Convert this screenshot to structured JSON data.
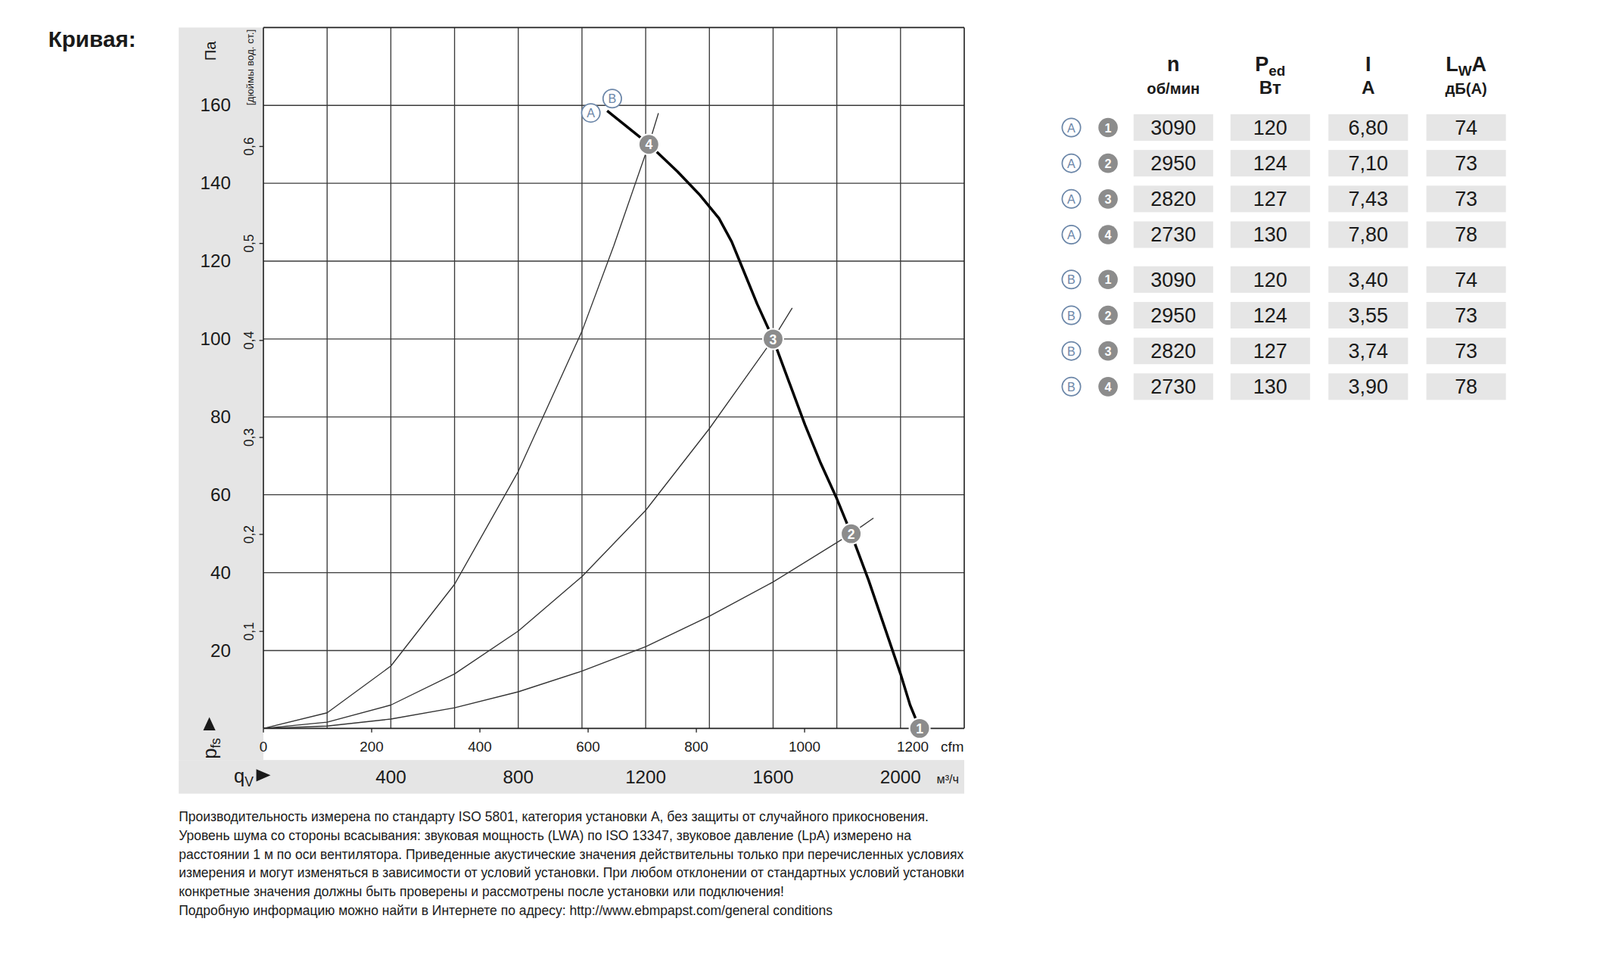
{
  "chart_data": {
    "type": "line",
    "title": "Кривая:",
    "xlabel": {
      "text": "q",
      "sub": "V"
    },
    "xunit": "м³/ч",
    "x2unit": "cfm",
    "ylabel": {
      "text": "p",
      "sub": "fs"
    },
    "yunit": "Па",
    "y2unit": "[дюймы вод. ст.]",
    "xlim": [
      0,
      2200
    ],
    "xticks": [
      400,
      800,
      1200,
      1600,
      2000
    ],
    "x_minor_ticks": [
      200,
      600,
      1000,
      1400,
      1800
    ],
    "x2lim": [
      0,
      1295
    ],
    "x2ticks": [
      0,
      200,
      400,
      600,
      800,
      1000,
      1200
    ],
    "ylim": [
      0,
      180
    ],
    "yticks": [
      20,
      40,
      60,
      80,
      100,
      120,
      140,
      160
    ],
    "y2lim": [
      0,
      0.7226
    ],
    "y2ticks": [
      {
        "value": 0.1,
        "label": "0,1"
      },
      {
        "value": 0.2,
        "label": "0,2"
      },
      {
        "value": 0.3,
        "label": "0,3"
      },
      {
        "value": 0.4,
        "label": "0,4"
      },
      {
        "value": 0.5,
        "label": "0,5"
      },
      {
        "value": 0.6,
        "label": "0,6"
      }
    ],
    "grid": true,
    "series": [
      {
        "type": "line",
        "labels": [
          "A",
          "B"
        ],
        "color": "#000000",
        "x": [
          1079,
          1210,
          1300,
          1370,
          1430,
          1470,
          1510,
          1550,
          1600,
          1650,
          1700,
          1750,
          1800,
          1845,
          1900,
          1950,
          2000,
          2030,
          2060
        ],
        "values": [
          158.6,
          150,
          143,
          137,
          131,
          125,
          117,
          109,
          100,
          89,
          78,
          68,
          59,
          50,
          38,
          26,
          14,
          6,
          0
        ]
      },
      {
        "type": "line",
        "color": "#333333",
        "x": [
          0,
          200,
          400,
          600,
          800,
          1000,
          1200,
          1400,
          1600,
          1845,
          1915
        ],
        "values": [
          0,
          0.6,
          2.4,
          5.3,
          9.4,
          14.7,
          21,
          28.8,
          37.6,
          50,
          54
        ]
      },
      {
        "type": "line",
        "color": "#333333",
        "x": [
          0,
          200,
          400,
          600,
          800,
          1000,
          1200,
          1400,
          1600,
          1660
        ],
        "values": [
          0,
          1.6,
          6,
          14,
          25,
          39,
          56,
          77,
          100,
          108
        ]
      },
      {
        "type": "line",
        "color": "#333333",
        "x": [
          0,
          200,
          400,
          600,
          800,
          1000,
          1100,
          1210,
          1240
        ],
        "values": [
          0,
          4,
          16,
          37,
          66,
          102,
          124,
          150,
          158
        ]
      },
      {
        "type": "scatter",
        "color": "#8c8c8c",
        "marker": "circle",
        "point_labels": [
          "1",
          "2",
          "3",
          "4"
        ],
        "x": [
          2060,
          1845,
          1600,
          1210
        ],
        "values": [
          0,
          50,
          100,
          150
        ]
      }
    ]
  },
  "table": {
    "columns": [
      {
        "name": "n",
        "unit": "об/мин"
      },
      {
        "name": "P",
        "sub": "ed",
        "unit": "Вт"
      },
      {
        "name": "I",
        "unit": "A"
      },
      {
        "name": "L",
        "sub": "W",
        "suffix": "A",
        "unit": "дБ(A)"
      }
    ],
    "rows": [
      {
        "curve": "A",
        "point": "1",
        "values": [
          "3090",
          "120",
          "6,80",
          "74"
        ]
      },
      {
        "curve": "A",
        "point": "2",
        "values": [
          "2950",
          "124",
          "7,10",
          "73"
        ]
      },
      {
        "curve": "A",
        "point": "3",
        "values": [
          "2820",
          "127",
          "7,43",
          "73"
        ]
      },
      {
        "curve": "A",
        "point": "4",
        "values": [
          "2730",
          "130",
          "7,80",
          "78"
        ]
      },
      {
        "curve": "B",
        "point": "1",
        "values": [
          "3090",
          "120",
          "3,40",
          "74"
        ]
      },
      {
        "curve": "B",
        "point": "2",
        "values": [
          "2950",
          "124",
          "3,55",
          "73"
        ]
      },
      {
        "curve": "B",
        "point": "3",
        "values": [
          "2820",
          "127",
          "3,74",
          "73"
        ]
      },
      {
        "curve": "B",
        "point": "4",
        "values": [
          "2730",
          "130",
          "3,90",
          "78"
        ]
      }
    ]
  },
  "footnote": [
    "Производительность измерена по стандарту ISO 5801, категория установки A, без защиты от случайного прикосновения.",
    "Уровень шума со стороны всасывания: звуковая мощность (LWA) по ISO 13347, звуковое давление (LpA) измерено на",
    "расстоянии 1 м по оси вентилятора. Приведенные акустические значения действительны только при перечисленных условиях",
    "измерения и могут изменяться в зависимости от условий установки. При любом отклонении от стандартных условий установки",
    "конкретные значения должны быть проверены и рассмотрены после установки или подключения!",
    "Подробную информацию можно найти в Интернете по адресу: http://www.ebmpapst.com/general conditions"
  ]
}
